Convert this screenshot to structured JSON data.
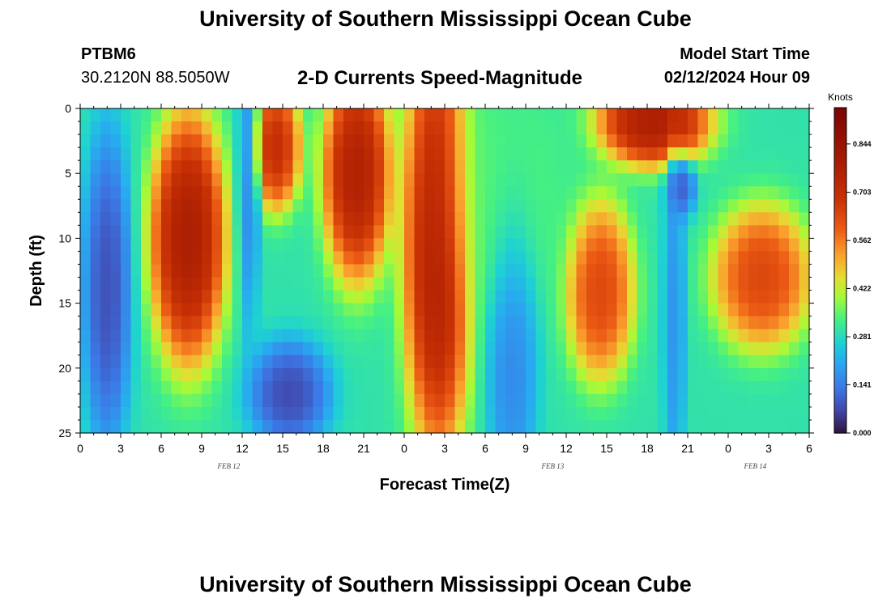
{
  "header": {
    "title": "University of Southern Mississippi Ocean Cube",
    "station_id": "PTBM6",
    "station_coords": "30.2120N  88.5050W",
    "plot_title": "2-D Currents Speed-Magnitude",
    "model_start_label": "Model Start Time",
    "model_start_value": "02/12/2024 Hour 09"
  },
  "footer": {
    "title": "University of Southern Mississippi Ocean Cube"
  },
  "chart_data": {
    "type": "heatmap",
    "title": "2-D Currents Speed-Magnitude",
    "xlabel": "Forecast Time(Z)",
    "ylabel": "Depth (ft)",
    "x_range_hours": [
      0,
      54
    ],
    "y_range_ft": [
      0,
      25
    ],
    "x_tick_labels": [
      "0",
      "3",
      "6",
      "9",
      "12",
      "15",
      "18",
      "21",
      "0",
      "3",
      "6",
      "9",
      "12",
      "15",
      "18",
      "21",
      "0",
      "3",
      "6"
    ],
    "y_tick_labels": [
      "0",
      "5",
      "10",
      "15",
      "20",
      "25"
    ],
    "y_tick_values": [
      0,
      5,
      10,
      15,
      20,
      25
    ],
    "date_labels": [
      {
        "text": "FEB 12",
        "hour": 11
      },
      {
        "text": "FEB 13",
        "hour": 35
      },
      {
        "text": "FEB 14",
        "hour": 50
      }
    ],
    "colorbar": {
      "unit": "Knots",
      "min": 0.0,
      "max": 0.95,
      "tick_values": [
        0.0,
        0.141,
        0.281,
        0.422,
        0.562,
        0.703,
        0.844
      ],
      "tick_labels": [
        "0.000",
        "0.141",
        "0.281",
        "0.422",
        "0.562",
        "0.703",
        "0.844"
      ]
    },
    "features": [
      {
        "hour": 2,
        "depth": 14,
        "speed": 0.03,
        "sx": 1.3,
        "sy": 9
      },
      {
        "hour": 8,
        "depth": 10,
        "speed": 0.9,
        "sx": 2.0,
        "sy": 7
      },
      {
        "hour": 12.5,
        "depth": 5,
        "speed": 0.13,
        "sx": 0.6,
        "sy": 9
      },
      {
        "hour": 14.5,
        "depth": 3,
        "speed": 0.8,
        "sx": 1.3,
        "sy": 3.5
      },
      {
        "hour": 20.5,
        "depth": 5,
        "speed": 0.88,
        "sx": 1.8,
        "sy": 6
      },
      {
        "hour": 15.5,
        "depth": 22,
        "speed": 0.02,
        "sx": 2.2,
        "sy": 3
      },
      {
        "hour": 26.5,
        "depth": 10,
        "speed": 0.92,
        "sx": 1.8,
        "sy": 12
      },
      {
        "hour": 31,
        "depth": 7,
        "speed": 0.35,
        "sx": 4,
        "sy": 8
      },
      {
        "hour": 32,
        "depth": 18,
        "speed": 0.12,
        "sx": 1.4,
        "sy": 9
      },
      {
        "hour": 38.5,
        "depth": 14,
        "speed": 0.72,
        "sx": 1.8,
        "sy": 5
      },
      {
        "hour": 42.5,
        "depth": 1,
        "speed": 0.9,
        "sx": 3,
        "sy": 2.5
      },
      {
        "hour": 44.5,
        "depth": 6,
        "speed": 0.05,
        "sx": 0.8,
        "sy": 1.8
      },
      {
        "hour": 44,
        "depth": 16,
        "speed": 0.15,
        "sx": 0.6,
        "sy": 10
      },
      {
        "hour": 50.5,
        "depth": 13,
        "speed": 0.72,
        "sx": 2.6,
        "sy": 4
      }
    ]
  }
}
